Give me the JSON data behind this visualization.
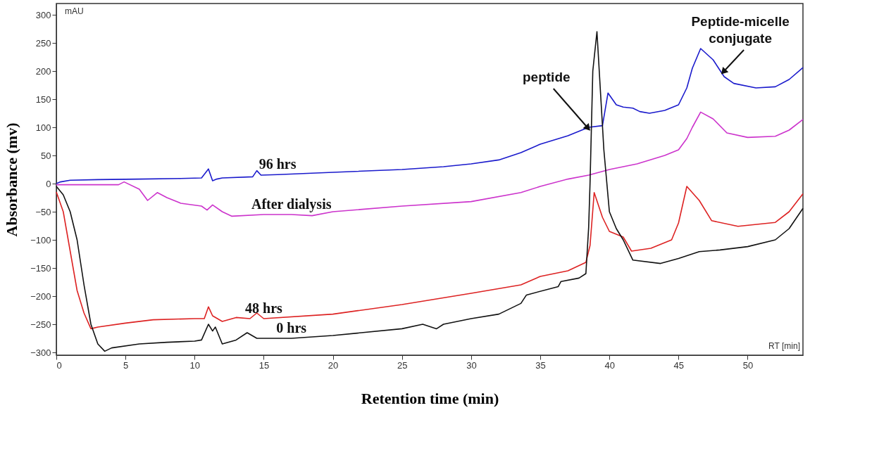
{
  "chart_data": {
    "type": "line",
    "xlabel": "Retention time (min)",
    "ylabel": "Absorbance (mv)",
    "xlim": [
      0,
      54
    ],
    "ylim": [
      -305,
      320
    ],
    "xticks": [
      0,
      5,
      10,
      15,
      20,
      25,
      30,
      35,
      40,
      45,
      50
    ],
    "yticks": [
      -300,
      -250,
      -200,
      -150,
      -100,
      -50,
      0,
      50,
      100,
      150,
      200,
      250,
      300
    ],
    "grid": false,
    "legend": false,
    "line_style": "solid",
    "marker": "none",
    "series": [
      {
        "name": "96 hrs",
        "color": "#1a1acc",
        "x": [
          0,
          0.3,
          1,
          3,
          6,
          9,
          10.5,
          11,
          11.3,
          11.6,
          12,
          14.2,
          14.5,
          14.8,
          16,
          20,
          25,
          28,
          30,
          32,
          33.6,
          35,
          37,
          38.5,
          39.5,
          39.9,
          40.5,
          41,
          41.7,
          42.2,
          42.9,
          44,
          45,
          45.6,
          46,
          46.6,
          47.5,
          48.3,
          49,
          50.6,
          52,
          53,
          54
        ],
        "values": [
          0,
          3,
          6,
          7,
          8,
          9,
          10,
          26,
          5,
          8,
          10,
          12,
          23,
          15,
          16,
          20,
          25,
          30,
          35,
          42,
          55,
          70,
          85,
          100,
          103,
          161,
          140,
          136,
          134,
          128,
          125,
          130,
          140,
          170,
          205,
          240,
          220,
          190,
          178,
          170,
          172,
          185,
          206
        ]
      },
      {
        "name": "After dialysis",
        "color": "#cc33cc",
        "x": [
          0,
          2,
          4.5,
          4.9,
          6,
          6.6,
          7.3,
          8,
          9,
          10.5,
          10.9,
          11.3,
          12,
          12.7,
          15,
          17,
          18.5,
          20,
          25,
          30,
          33.6,
          35,
          37,
          38.5,
          40,
          42,
          44,
          45,
          45.6,
          46,
          46.6,
          47.5,
          48.5,
          50,
          52,
          53,
          54
        ],
        "values": [
          -2,
          -2,
          -2,
          3,
          -10,
          -30,
          -16,
          -25,
          -35,
          -40,
          -47,
          -38,
          -50,
          -58,
          -55,
          -55,
          -57,
          -50,
          -40,
          -32,
          -16,
          -5,
          8,
          15,
          25,
          35,
          50,
          60,
          80,
          100,
          127,
          115,
          90,
          82,
          84,
          95,
          114
        ]
      },
      {
        "name": "48 hrs",
        "color": "#dd2222",
        "x": [
          0,
          0.5,
          1,
          1.5,
          2,
          2.5,
          3,
          5,
          7,
          10,
          10.7,
          11,
          11.3,
          12,
          13,
          14,
          14.5,
          15,
          20,
          25,
          30,
          33.6,
          35,
          37,
          38.3,
          38.6,
          38.9,
          39.5,
          40,
          41,
          41.6,
          43,
          44.5,
          45,
          45.6,
          46.5,
          47.4,
          49.3,
          52,
          53,
          54
        ],
        "values": [
          -15,
          -50,
          -120,
          -190,
          -230,
          -258,
          -255,
          -248,
          -242,
          -240,
          -240,
          -219,
          -235,
          -245,
          -238,
          -240,
          -230,
          -240,
          -232,
          -215,
          -195,
          -180,
          -165,
          -155,
          -140,
          -110,
          -16,
          -60,
          -85,
          -95,
          -120,
          -115,
          -100,
          -70,
          -5,
          -30,
          -66,
          -76,
          -69,
          -50,
          -18
        ]
      },
      {
        "name": "0 hrs",
        "color": "#111111",
        "x": [
          0,
          0.5,
          1,
          1.5,
          2,
          2.5,
          3,
          3.5,
          4,
          6,
          8,
          10,
          10.5,
          11,
          11.3,
          11.5,
          12,
          13,
          13.8,
          14.5,
          17,
          20,
          25,
          26.5,
          27.5,
          28,
          30,
          32,
          33.6,
          34,
          36.3,
          36.5,
          37.8,
          38.3,
          38.5,
          38.6,
          38.8,
          39.1,
          39.6,
          40,
          40.5,
          41,
          41.7,
          43.7,
          45,
          46.5,
          48,
          50,
          52,
          53,
          54
        ],
        "values": [
          -5,
          -20,
          -50,
          -100,
          -180,
          -250,
          -285,
          -298,
          -292,
          -285,
          -282,
          -280,
          -278,
          -250,
          -262,
          -255,
          -285,
          -278,
          -265,
          -275,
          -275,
          -270,
          -258,
          -250,
          -258,
          -250,
          -240,
          -232,
          -213,
          -198,
          -183,
          -174,
          -168,
          -160,
          -78,
          0,
          200,
          270,
          60,
          -50,
          -80,
          -100,
          -136,
          -142,
          -133,
          -121,
          -118,
          -112,
          -100,
          -80,
          -44
        ]
      }
    ],
    "annotations": [
      "mAU",
      "RT [min]",
      {
        "text": "peptide",
        "x": 38.4,
        "y": 100
      },
      {
        "text": "Peptide-micelle conjugate",
        "x": 48.3,
        "y": 200
      }
    ]
  }
}
